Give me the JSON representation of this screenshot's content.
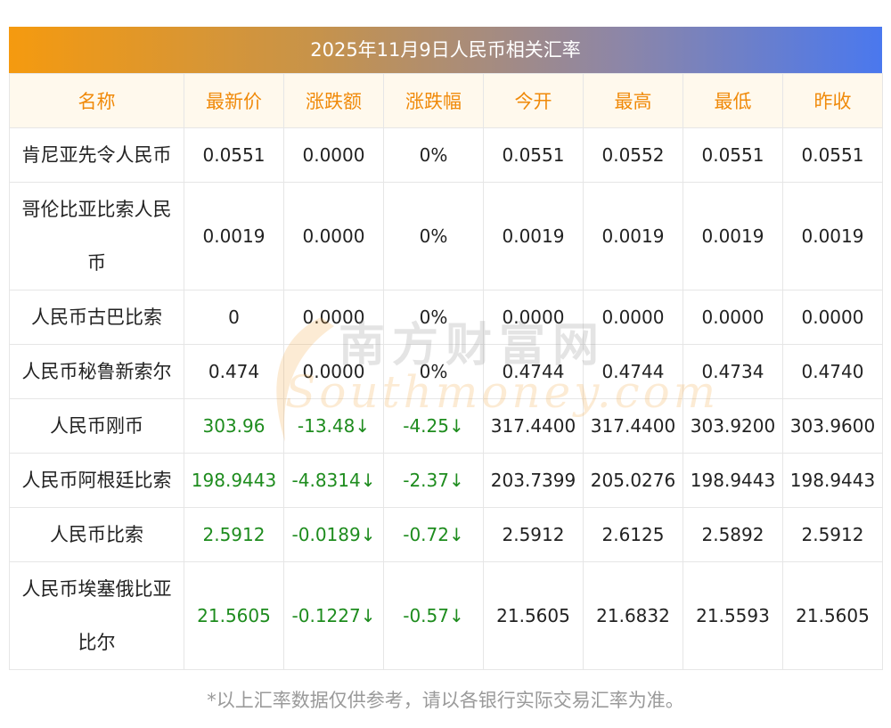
{
  "title": "2025年11月9日人民币相关汇率",
  "columns": [
    "名称",
    "最新价",
    "涨跌额",
    "涨跌幅",
    "今开",
    "最高",
    "最低",
    "昨收"
  ],
  "rows": [
    {
      "name": "肯尼亚先令人民币",
      "latest": "0.0551",
      "change": "0.0000",
      "change_pct": "0%",
      "open": "0.0551",
      "high": "0.0552",
      "low": "0.0551",
      "prev_close": "0.0551",
      "direction": "flat"
    },
    {
      "name": "哥伦比亚比索人民币",
      "latest": "0.0019",
      "change": "0.0000",
      "change_pct": "0%",
      "open": "0.0019",
      "high": "0.0019",
      "low": "0.0019",
      "prev_close": "0.0019",
      "direction": "flat"
    },
    {
      "name": "人民币古巴比索",
      "latest": "0",
      "change": "0.0000",
      "change_pct": "0%",
      "open": "0.0000",
      "high": "0.0000",
      "low": "0.0000",
      "prev_close": "0.0000",
      "direction": "flat"
    },
    {
      "name": "人民币秘鲁新索尔",
      "latest": "0.474",
      "change": "0.0000",
      "change_pct": "0%",
      "open": "0.4744",
      "high": "0.4744",
      "low": "0.4734",
      "prev_close": "0.4740",
      "direction": "flat"
    },
    {
      "name": "人民币刚币",
      "latest": "303.96",
      "change": "-13.48↓",
      "change_pct": "-4.25↓",
      "open": "317.4400",
      "high": "317.4400",
      "low": "303.9200",
      "prev_close": "303.9600",
      "direction": "down"
    },
    {
      "name": "人民币阿根廷比索",
      "latest": "198.9443",
      "change": "-4.8314↓",
      "change_pct": "-2.37↓",
      "open": "203.7399",
      "high": "205.0276",
      "low": "198.9443",
      "prev_close": "198.9443",
      "direction": "down"
    },
    {
      "name": "人民币比索",
      "latest": "2.5912",
      "change": "-0.0189↓",
      "change_pct": "-0.72↓",
      "open": "2.5912",
      "high": "2.6125",
      "low": "2.5892",
      "prev_close": "2.5912",
      "direction": "down"
    },
    {
      "name": "人民币埃塞俄比亚比尔",
      "latest": "21.5605",
      "change": "-0.1227↓",
      "change_pct": "-0.57↓",
      "open": "21.5605",
      "high": "21.6832",
      "low": "21.5593",
      "prev_close": "21.5605",
      "direction": "down"
    }
  ],
  "colors": {
    "header_text": "#f08a0a",
    "down_text": "#1e8c1e",
    "title_gradient_start": "#f59a0f",
    "title_gradient_end": "#4a78ee"
  },
  "watermark": {
    "cn": "南方财富网",
    "en": "Southmoney.com"
  },
  "footnote": "*以上汇率数据仅供参考，请以各银行实际交易汇率为准。"
}
